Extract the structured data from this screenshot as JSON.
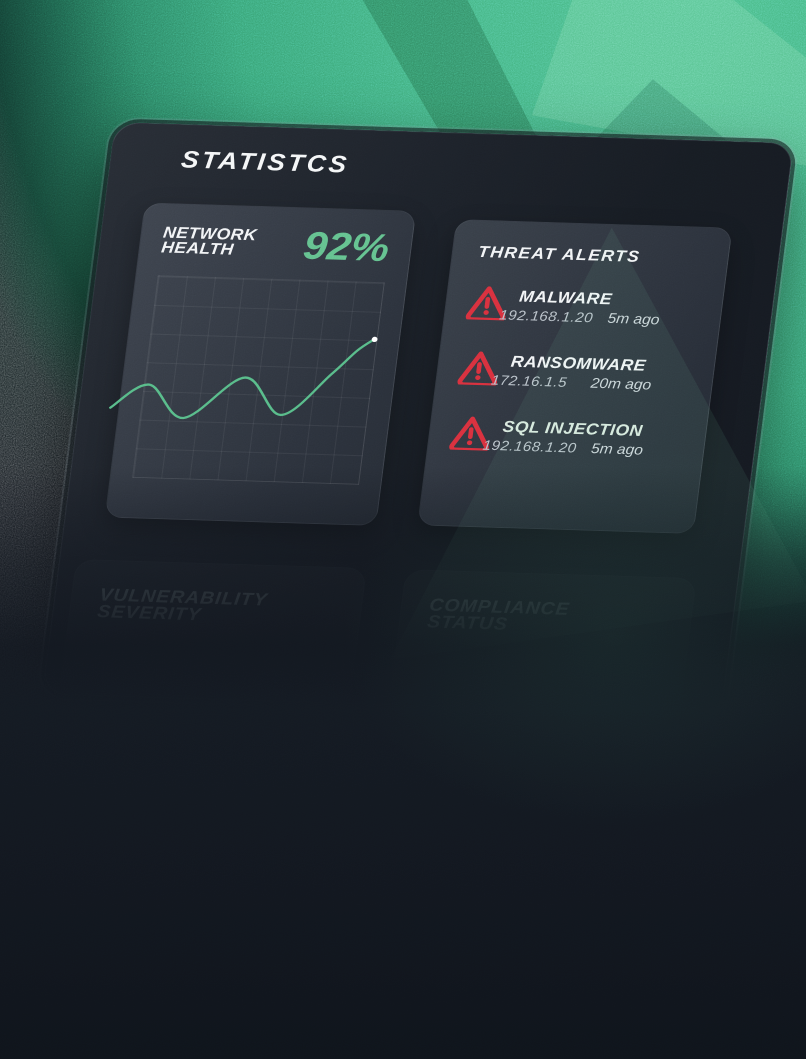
{
  "page": {
    "title": "STATISTCS"
  },
  "colors": {
    "accent_green": "#63c18e",
    "line_green": "#57bb88",
    "alert_red": "#d8303d",
    "panel_bg": "#1b2028",
    "card_bg": "#343a44",
    "bg_green": "#3fae7c",
    "bg_dark": "#10151c"
  },
  "network_card": {
    "title_line1": "NETWORK",
    "title_line2": "HEALTH",
    "value": "92%"
  },
  "chart_data": {
    "type": "line",
    "title": "Network health trend sparkline",
    "grid": {
      "cols": 8,
      "rows": 7,
      "visible": true
    },
    "axes_labeled": false,
    "series": [
      {
        "name": "network-health",
        "x_pct": [
          -14,
          2,
          19,
          44,
          62,
          82,
          92,
          99
        ],
        "y_pct": [
          66,
          54,
          70,
          49,
          67,
          46,
          34,
          28
        ]
      }
    ],
    "marker": {
      "at": "end",
      "style": "white-ring"
    },
    "line_color": "#57bb88"
  },
  "threat_card": {
    "title": "THREAT ALERTS",
    "alerts": [
      {
        "icon": "warning-triangle-icon",
        "name": "MALWARE",
        "ip": "192.168.1.20",
        "time": "5m ago",
        "name_color": "#f2f4f6"
      },
      {
        "icon": "warning-triangle-icon",
        "name": "RANSOMWARE",
        "ip": "172.16.1.5",
        "time": "20m ago",
        "name_color": "#f2f4f6"
      },
      {
        "icon": "warning-triangle-icon",
        "name": "SQL INJECTION",
        "ip": "192.168.1.20",
        "time": "5m ago",
        "name_color": "#d9e8de"
      }
    ]
  },
  "hidden_cards": [
    {
      "line1": "VULNERABILITY",
      "line2": "SEVERITY"
    },
    {
      "line1": "COMPLIANCE",
      "line2": "STATUS"
    }
  ]
}
